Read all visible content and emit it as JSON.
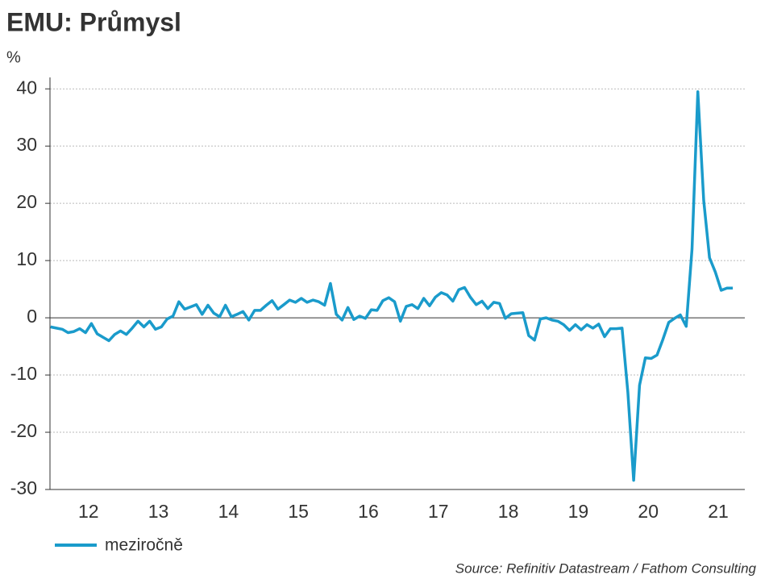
{
  "chart_data": {
    "type": "line",
    "title": "EMU: Průmysl",
    "y_unit": "%",
    "source": "Source: Refinitiv Datastream / Fathom Consulting",
    "x": [
      2011.958,
      2012.042,
      2012.125,
      2012.208,
      2012.292,
      2012.375,
      2012.458,
      2012.542,
      2012.625,
      2012.708,
      2012.792,
      2012.875,
      2012.958,
      2013.042,
      2013.125,
      2013.208,
      2013.292,
      2013.375,
      2013.458,
      2013.542,
      2013.625,
      2013.708,
      2013.792,
      2013.875,
      2013.958,
      2014.042,
      2014.125,
      2014.208,
      2014.292,
      2014.375,
      2014.458,
      2014.542,
      2014.625,
      2014.708,
      2014.792,
      2014.875,
      2014.958,
      2015.042,
      2015.125,
      2015.208,
      2015.292,
      2015.375,
      2015.458,
      2015.542,
      2015.625,
      2015.708,
      2015.792,
      2015.875,
      2015.958,
      2016.042,
      2016.125,
      2016.208,
      2016.292,
      2016.375,
      2016.458,
      2016.542,
      2016.625,
      2016.708,
      2016.792,
      2016.875,
      2016.958,
      2017.042,
      2017.125,
      2017.208,
      2017.292,
      2017.375,
      2017.458,
      2017.542,
      2017.625,
      2017.708,
      2017.792,
      2017.875,
      2017.958,
      2018.042,
      2018.125,
      2018.208,
      2018.292,
      2018.375,
      2018.458,
      2018.542,
      2018.625,
      2018.708,
      2018.792,
      2018.875,
      2018.958,
      2019.042,
      2019.125,
      2019.208,
      2019.292,
      2019.375,
      2019.458,
      2019.542,
      2019.625,
      2019.708,
      2019.792,
      2019.875,
      2019.958,
      2020.042,
      2020.125,
      2020.208,
      2020.292,
      2020.375,
      2020.458,
      2020.542,
      2020.625,
      2020.708,
      2020.792,
      2020.875,
      2020.958,
      2021.042,
      2021.125,
      2021.208,
      2021.292,
      2021.375,
      2021.458,
      2021.542,
      2021.625,
      2021.708
    ],
    "series": [
      {
        "name": "meziročně",
        "color": "#1a9bcb",
        "values": [
          -1.6,
          -1.8,
          -2.0,
          -2.6,
          -2.4,
          -1.9,
          -2.6,
          -1.0,
          -2.8,
          -3.4,
          -4.0,
          -2.9,
          -2.3,
          -2.9,
          -1.8,
          -0.6,
          -1.6,
          -0.6,
          -2.0,
          -1.6,
          -0.2,
          0.3,
          2.8,
          1.5,
          1.9,
          2.3,
          0.6,
          2.2,
          0.8,
          0.2,
          2.2,
          0.2,
          0.6,
          1.1,
          -0.4,
          1.3,
          1.3,
          2.2,
          3.0,
          1.5,
          2.3,
          3.1,
          2.7,
          3.4,
          2.7,
          3.1,
          2.8,
          2.2,
          6.0,
          0.6,
          -0.4,
          1.8,
          -0.3,
          0.3,
          -0.1,
          1.4,
          1.3,
          3.0,
          3.5,
          2.8,
          -0.6,
          2.0,
          2.3,
          1.6,
          3.4,
          2.1,
          3.6,
          4.4,
          4.0,
          2.9,
          4.9,
          5.3,
          3.6,
          2.3,
          2.9,
          1.6,
          2.7,
          2.5,
          -0.1,
          0.7,
          0.8,
          0.9,
          -3.1,
          -3.9,
          -0.2,
          0.0,
          -0.4,
          -0.6,
          -1.2,
          -2.2,
          -1.2,
          -2.1,
          -1.2,
          -1.8,
          -1.1,
          -3.3,
          -1.9,
          -1.9,
          -1.8,
          -13.0,
          -28.4,
          -11.8,
          -7.0,
          -7.1,
          -6.5,
          -3.8,
          -0.8,
          -0.1,
          0.5,
          -1.5,
          12.0,
          39.5,
          20.5,
          10.5,
          8.0,
          4.8,
          5.2,
          5.2
        ]
      }
    ],
    "xlim": [
      2011.95,
      2021.88
    ],
    "xticks": [
      {
        "value": 2012.5,
        "label": "12"
      },
      {
        "value": 2013.5,
        "label": "13"
      },
      {
        "value": 2014.5,
        "label": "14"
      },
      {
        "value": 2015.5,
        "label": "15"
      },
      {
        "value": 2016.5,
        "label": "16"
      },
      {
        "value": 2017.5,
        "label": "17"
      },
      {
        "value": 2018.5,
        "label": "18"
      },
      {
        "value": 2019.5,
        "label": "19"
      },
      {
        "value": 2020.5,
        "label": "20"
      },
      {
        "value": 2021.5,
        "label": "21"
      }
    ],
    "ylim": [
      -30,
      42
    ],
    "yticks": [
      -30,
      -20,
      -10,
      0,
      10,
      20,
      30,
      40
    ],
    "grid": true
  }
}
